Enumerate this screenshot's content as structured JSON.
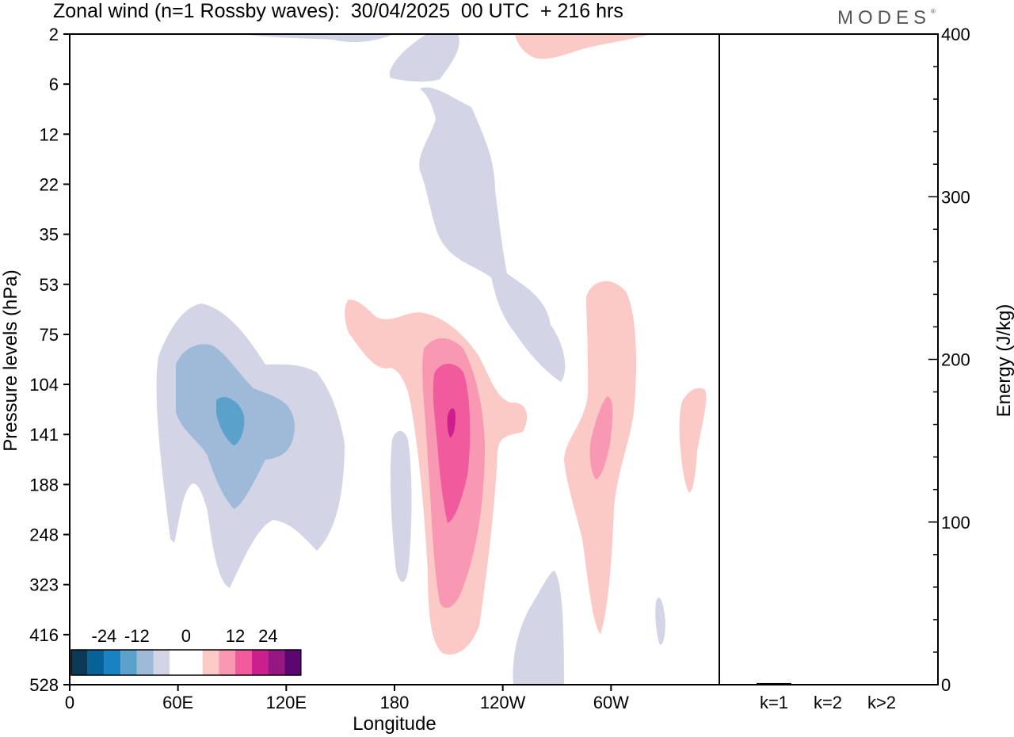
{
  "header": {
    "title": "Zonal wind (n=1 Rossby waves):  30/04/2025  00 UTC  + 216 hrs",
    "brand": "MODES"
  },
  "chart_data": [
    {
      "type": "heatmap",
      "title": "Zonal wind (n=1 Rossby waves):  30/04/2025  00 UTC  + 216 hrs",
      "xlabel": "Longitude",
      "ylabel": "Pressure levels (hPa)",
      "x_tick_labels": [
        "0",
        "60E",
        "120E",
        "180",
        "120W",
        "60W"
      ],
      "x_tick_values_deg_east": [
        0,
        60,
        120,
        180,
        240,
        300
      ],
      "xlim_deg_east": [
        0,
        360
      ],
      "y_tick_labels": [
        "2",
        "6",
        "12",
        "22",
        "35",
        "53",
        "75",
        "104",
        "141",
        "188",
        "248",
        "323",
        "416",
        "528"
      ],
      "y_levels_hpa": [
        2,
        6,
        12,
        22,
        35,
        53,
        75,
        104,
        141,
        188,
        248,
        323,
        416,
        528
      ],
      "colorbar": {
        "labels": [
          "-24",
          "-12",
          "0",
          "12",
          "24"
        ],
        "colors": [
          "#0b3a56",
          "#08629a",
          "#1a82c0",
          "#5aa2cc",
          "#9fbad9",
          "#d3d5e7",
          "#ffffff",
          "#ffffff",
          "#fccac6",
          "#f898b3",
          "#f15a9c",
          "#cc1f8e",
          "#951781",
          "#5c0672"
        ]
      },
      "features": [
        {
          "sign": "negative",
          "peak_lon_deg_east": 90,
          "peak_level_hpa": 130,
          "levels_reached": [
            "-6",
            "-12",
            "-18"
          ]
        },
        {
          "sign": "negative",
          "peak_lon_deg_east": 210,
          "peak_level_hpa": 22,
          "levels_reached": [
            "-6"
          ]
        },
        {
          "sign": "negative",
          "peak_lon_deg_east": 182,
          "peak_level_hpa": 200,
          "levels_reached": [
            "-6"
          ]
        },
        {
          "sign": "negative",
          "peak_lon_deg_east": 250,
          "peak_level_hpa": 420,
          "levels_reached": [
            "-6"
          ]
        },
        {
          "sign": "positive",
          "peak_lon_deg_east": 210,
          "peak_level_hpa": 130,
          "levels_reached": [
            "6",
            "12",
            "18",
            "24"
          ]
        },
        {
          "sign": "positive",
          "peak_lon_deg_east": 300,
          "peak_level_hpa": 145,
          "levels_reached": [
            "6",
            "12"
          ]
        },
        {
          "sign": "positive",
          "peak_lon_deg_east": 340,
          "peak_level_hpa": 141,
          "levels_reached": [
            "6"
          ]
        },
        {
          "sign": "positive",
          "peak_lon_deg_east": 280,
          "peak_level_hpa": 2,
          "levels_reached": [
            "6"
          ]
        }
      ]
    },
    {
      "type": "bar",
      "ylabel": "Energy (J/kg)",
      "categories": [
        "k=1",
        "k=2",
        "k>2"
      ],
      "values": [
        1.0,
        0.2,
        0.4
      ],
      "ylim": [
        0,
        400
      ],
      "y_tick_labels": [
        "0",
        "100",
        "200",
        "300",
        "400"
      ]
    }
  ]
}
